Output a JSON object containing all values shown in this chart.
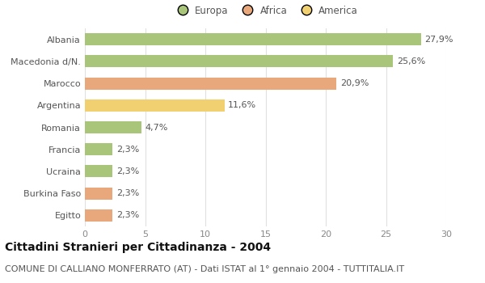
{
  "categories": [
    "Albania",
    "Macedonia d/N.",
    "Marocco",
    "Argentina",
    "Romania",
    "Francia",
    "Ucraina",
    "Burkina Faso",
    "Egitto"
  ],
  "values": [
    27.9,
    25.6,
    20.9,
    11.6,
    4.7,
    2.3,
    2.3,
    2.3,
    2.3
  ],
  "labels": [
    "27,9%",
    "25,6%",
    "20,9%",
    "11,6%",
    "4,7%",
    "2,3%",
    "2,3%",
    "2,3%",
    "2,3%"
  ],
  "colors": [
    "#a8c57a",
    "#a8c57a",
    "#e8a87c",
    "#f0d070",
    "#a8c57a",
    "#a8c57a",
    "#a8c57a",
    "#e8a87c",
    "#e8a87c"
  ],
  "legend_labels": [
    "Europa",
    "Africa",
    "America"
  ],
  "legend_colors": [
    "#a8c57a",
    "#e8a87c",
    "#f0d070"
  ],
  "title": "Cittadini Stranieri per Cittadinanza - 2004",
  "subtitle": "COMUNE DI CALLIANO MONFERRATO (AT) - Dati ISTAT al 1° gennaio 2004 - TUTTITALIA.IT",
  "xlim": [
    0,
    30
  ],
  "xticks": [
    0,
    5,
    10,
    15,
    20,
    25,
    30
  ],
  "background_color": "#ffffff",
  "grid_color": "#e0e0e0",
  "bar_height": 0.55,
  "title_fontsize": 10,
  "subtitle_fontsize": 8,
  "tick_label_fontsize": 8,
  "value_label_fontsize": 8,
  "legend_fontsize": 8.5
}
